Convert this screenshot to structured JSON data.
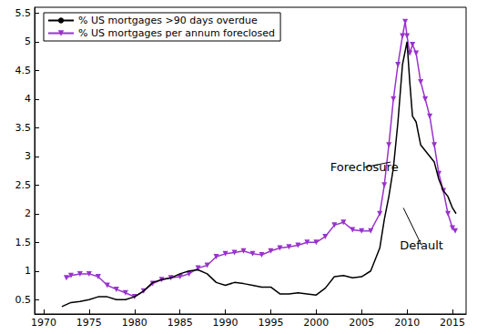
{
  "chart_data": {
    "type": "line",
    "xlim": [
      1969,
      2016.5
    ],
    "xticks": [
      1970,
      1975,
      1980,
      1985,
      1990,
      1995,
      2000,
      2005,
      2010,
      2015
    ],
    "ylim": [
      0.25,
      5.6
    ],
    "yticks": [
      0.5,
      1,
      1.5,
      2,
      2.5,
      3,
      3.5,
      4,
      4.5,
      5,
      5.5
    ],
    "grid": false,
    "legend": "upper left",
    "series": [
      {
        "name": "% US mortgages >90 days overdue",
        "color": "#000000",
        "marker": "none",
        "line_style": "solid",
        "x": [
          1972,
          1973,
          1974,
          1975,
          1976,
          1977,
          1978,
          1979,
          1980,
          1981,
          1982,
          1983,
          1984,
          1985,
          1986,
          1987,
          1988,
          1989,
          1990,
          1991,
          1992,
          1993,
          1994,
          1995,
          1996,
          1997,
          1998,
          1999,
          2000,
          2001,
          2002,
          2003,
          2004,
          2005,
          2006,
          2007,
          2007.5,
          2008,
          2008.5,
          2009,
          2009.5,
          2010,
          2010.3,
          2010.6,
          2011,
          2011.5,
          2012,
          2012.5,
          2013,
          2013.5,
          2014,
          2014.5,
          2015,
          2015.4
        ],
        "values": [
          0.38,
          0.45,
          0.47,
          0.5,
          0.55,
          0.55,
          0.5,
          0.5,
          0.55,
          0.65,
          0.8,
          0.85,
          0.88,
          0.95,
          1.0,
          1.02,
          0.95,
          0.8,
          0.75,
          0.8,
          0.78,
          0.75,
          0.72,
          0.72,
          0.6,
          0.6,
          0.62,
          0.6,
          0.58,
          0.7,
          0.9,
          0.92,
          0.88,
          0.9,
          1.0,
          1.4,
          1.9,
          2.3,
          2.8,
          3.6,
          4.6,
          5.0,
          4.3,
          3.7,
          3.6,
          3.2,
          3.1,
          3.0,
          2.9,
          2.6,
          2.4,
          2.3,
          2.1,
          2.0
        ]
      },
      {
        "name": "% US mortgages per annum foreclosed",
        "color": "#9932cc",
        "marker": "triangle_down",
        "line_style": "solid",
        "x": [
          1972.5,
          1973,
          1974,
          1975,
          1976,
          1977,
          1978,
          1979,
          1980,
          1981,
          1982,
          1983,
          1984,
          1985,
          1986,
          1987,
          1988,
          1989,
          1990,
          1991,
          1992,
          1993,
          1994,
          1995,
          1996,
          1997,
          1998,
          1999,
          2000,
          2001,
          2002,
          2003,
          2004,
          2005,
          2006,
          2007,
          2007.5,
          2008,
          2008.5,
          2009,
          2009.5,
          2009.8,
          2010,
          2010.3,
          2010.6,
          2011,
          2011.5,
          2012,
          2012.5,
          2013,
          2013.5,
          2014,
          2014.5,
          2015,
          2015.3
        ],
        "values": [
          0.88,
          0.92,
          0.95,
          0.95,
          0.9,
          0.75,
          0.68,
          0.62,
          0.55,
          0.65,
          0.78,
          0.85,
          0.88,
          0.9,
          0.95,
          1.05,
          1.1,
          1.25,
          1.3,
          1.32,
          1.35,
          1.3,
          1.28,
          1.35,
          1.4,
          1.42,
          1.45,
          1.5,
          1.5,
          1.6,
          1.8,
          1.85,
          1.72,
          1.7,
          1.7,
          2.0,
          2.5,
          3.2,
          4.0,
          4.6,
          5.1,
          5.35,
          5.1,
          4.8,
          4.95,
          4.8,
          4.3,
          4.0,
          3.7,
          3.2,
          2.7,
          2.4,
          2.0,
          1.75,
          1.7
        ]
      }
    ],
    "annotations": [
      {
        "text": "Foreclosure",
        "xy": [
          2005.3,
          2.81
        ],
        "target": [
          2008.2,
          2.9
        ]
      },
      {
        "text": "Default",
        "xy": [
          2011.6,
          1.45
        ],
        "target": [
          2009.6,
          2.1
        ]
      }
    ]
  }
}
